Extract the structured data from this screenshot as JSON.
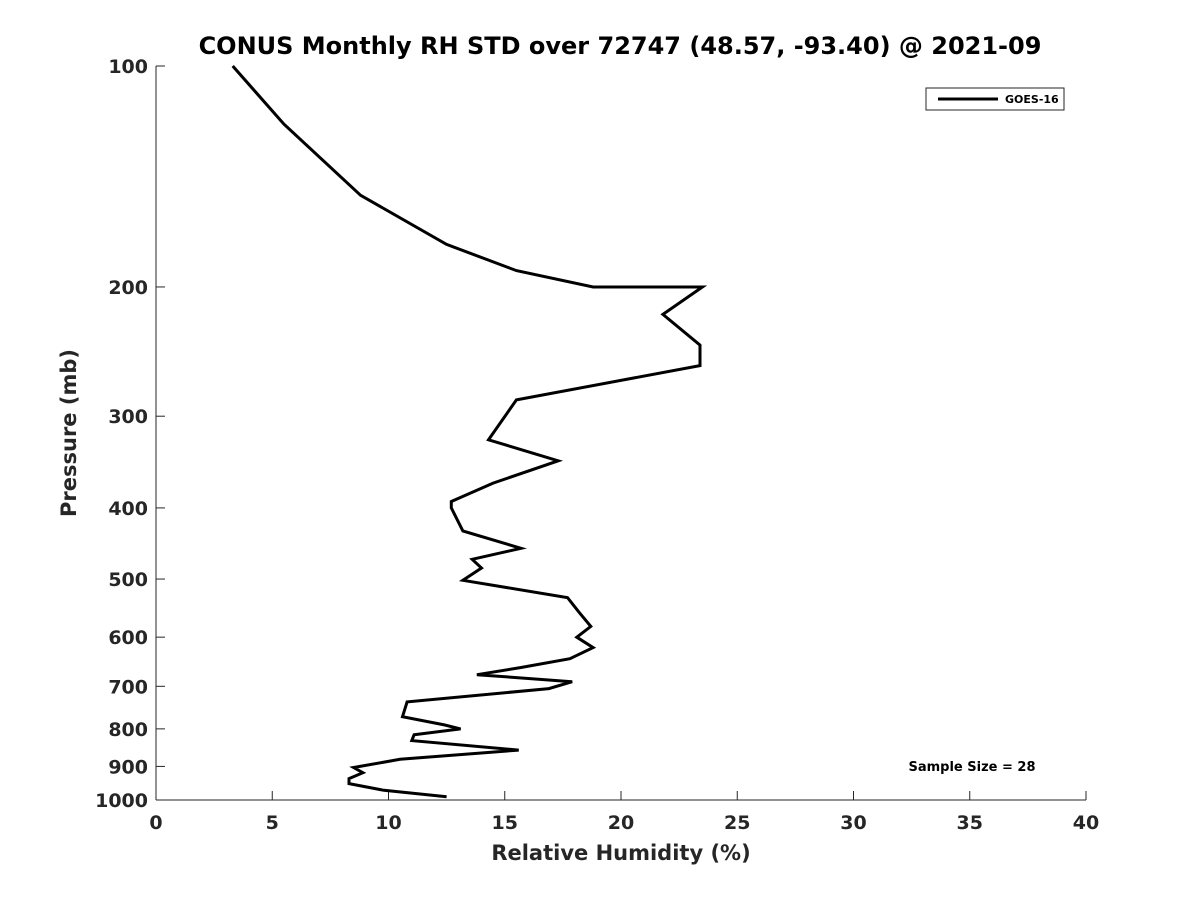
{
  "chart_data": {
    "type": "line",
    "title": "CONUS Monthly RH STD over 72747 (48.57, -93.40) @ 2021-09",
    "xlabel": "Relative Humidity (%)",
    "ylabel": "Pressure (mb)",
    "xlim": [
      0,
      40
    ],
    "ylim": [
      100,
      1000
    ],
    "y_scale": "log",
    "y_reversed": true,
    "x_ticks": [
      0,
      5,
      10,
      15,
      20,
      25,
      30,
      35,
      40
    ],
    "x_tick_labels": [
      "0",
      "5",
      "10",
      "15",
      "20",
      "25",
      "30",
      "35",
      "40"
    ],
    "y_ticks": [
      100,
      200,
      300,
      400,
      500,
      600,
      700,
      800,
      900,
      1000
    ],
    "y_tick_labels": [
      "100",
      "200",
      "300",
      "400",
      "500",
      "600",
      "700",
      "800",
      "900",
      "1000"
    ],
    "grid": false,
    "legend": {
      "position": "top-right",
      "entries": [
        "GOES-16"
      ]
    },
    "annotation": "Sample Size = 28",
    "series": [
      {
        "name": "GOES-16",
        "color": "#000000",
        "x": [
          3.3,
          5.5,
          8.8,
          12.5,
          15.5,
          18.8,
          23.5,
          21.8,
          23.4,
          23.4,
          15.5,
          14.3,
          17.3,
          14.5,
          12.7,
          12.7,
          13.2,
          15.7,
          13.6,
          14.0,
          13.2,
          17.7,
          18.2,
          18.7,
          18.1,
          18.8,
          17.8,
          15.7,
          13.8,
          17.9,
          16.9,
          10.8,
          10.6,
          12.4,
          13.1,
          11.1,
          11.0,
          15.6,
          10.5,
          8.5,
          8.9,
          8.3,
          8.3,
          9.8,
          12.5
        ],
        "y": [
          100,
          120,
          150,
          175,
          190,
          200,
          200,
          218,
          240,
          256,
          285,
          323,
          345,
          370,
          392,
          400,
          430,
          454,
          470,
          483,
          502,
          530,
          555,
          580,
          600,
          620,
          642,
          660,
          675,
          690,
          705,
          735,
          770,
          790,
          800,
          815,
          830,
          855,
          880,
          903,
          918,
          935,
          950,
          970,
          990
        ]
      }
    ]
  }
}
